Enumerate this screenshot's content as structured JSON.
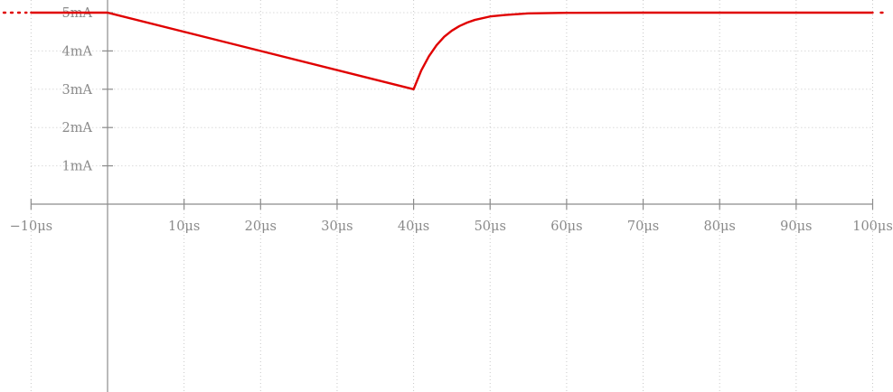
{
  "chart_data": {
    "type": "line",
    "title": "",
    "xlabel": "",
    "ylabel": "",
    "xlim": [
      -10,
      100
    ],
    "ylim": [
      -2.6,
      5
    ],
    "x_unit": "μs",
    "y_unit": "mA",
    "grid": true,
    "x_ticks": [
      -10,
      10,
      20,
      30,
      40,
      50,
      60,
      70,
      80,
      90,
      100
    ],
    "x_tick_labels": [
      "−10μs",
      "10μs",
      "20μs",
      "30μs",
      "40μs",
      "50μs",
      "60μs",
      "70μs",
      "80μs",
      "90μs",
      "100μs"
    ],
    "y_ticks": [
      1,
      2,
      3,
      4,
      5
    ],
    "y_tick_labels": [
      "1mA",
      "2mA",
      "3mA",
      "4mA",
      "5mA"
    ],
    "series": [
      {
        "color": "#e00000",
        "line_style": "solid",
        "continues_beyond_axes": true,
        "points": [
          {
            "x": -10,
            "y": 5
          },
          {
            "x": 0,
            "y": 5
          },
          {
            "x": 40,
            "y": 3
          },
          {
            "x": 41,
            "y": 3.49
          },
          {
            "x": 42,
            "y": 3.86
          },
          {
            "x": 43,
            "y": 4.15
          },
          {
            "x": 44,
            "y": 4.37
          },
          {
            "x": 45,
            "y": 4.53
          },
          {
            "x": 46,
            "y": 4.65
          },
          {
            "x": 47,
            "y": 4.74
          },
          {
            "x": 48,
            "y": 4.81
          },
          {
            "x": 50,
            "y": 4.9
          },
          {
            "x": 52,
            "y": 4.94
          },
          {
            "x": 55,
            "y": 4.98
          },
          {
            "x": 60,
            "y": 4.995
          },
          {
            "x": 70,
            "y": 5
          },
          {
            "x": 100,
            "y": 5
          }
        ]
      }
    ]
  }
}
